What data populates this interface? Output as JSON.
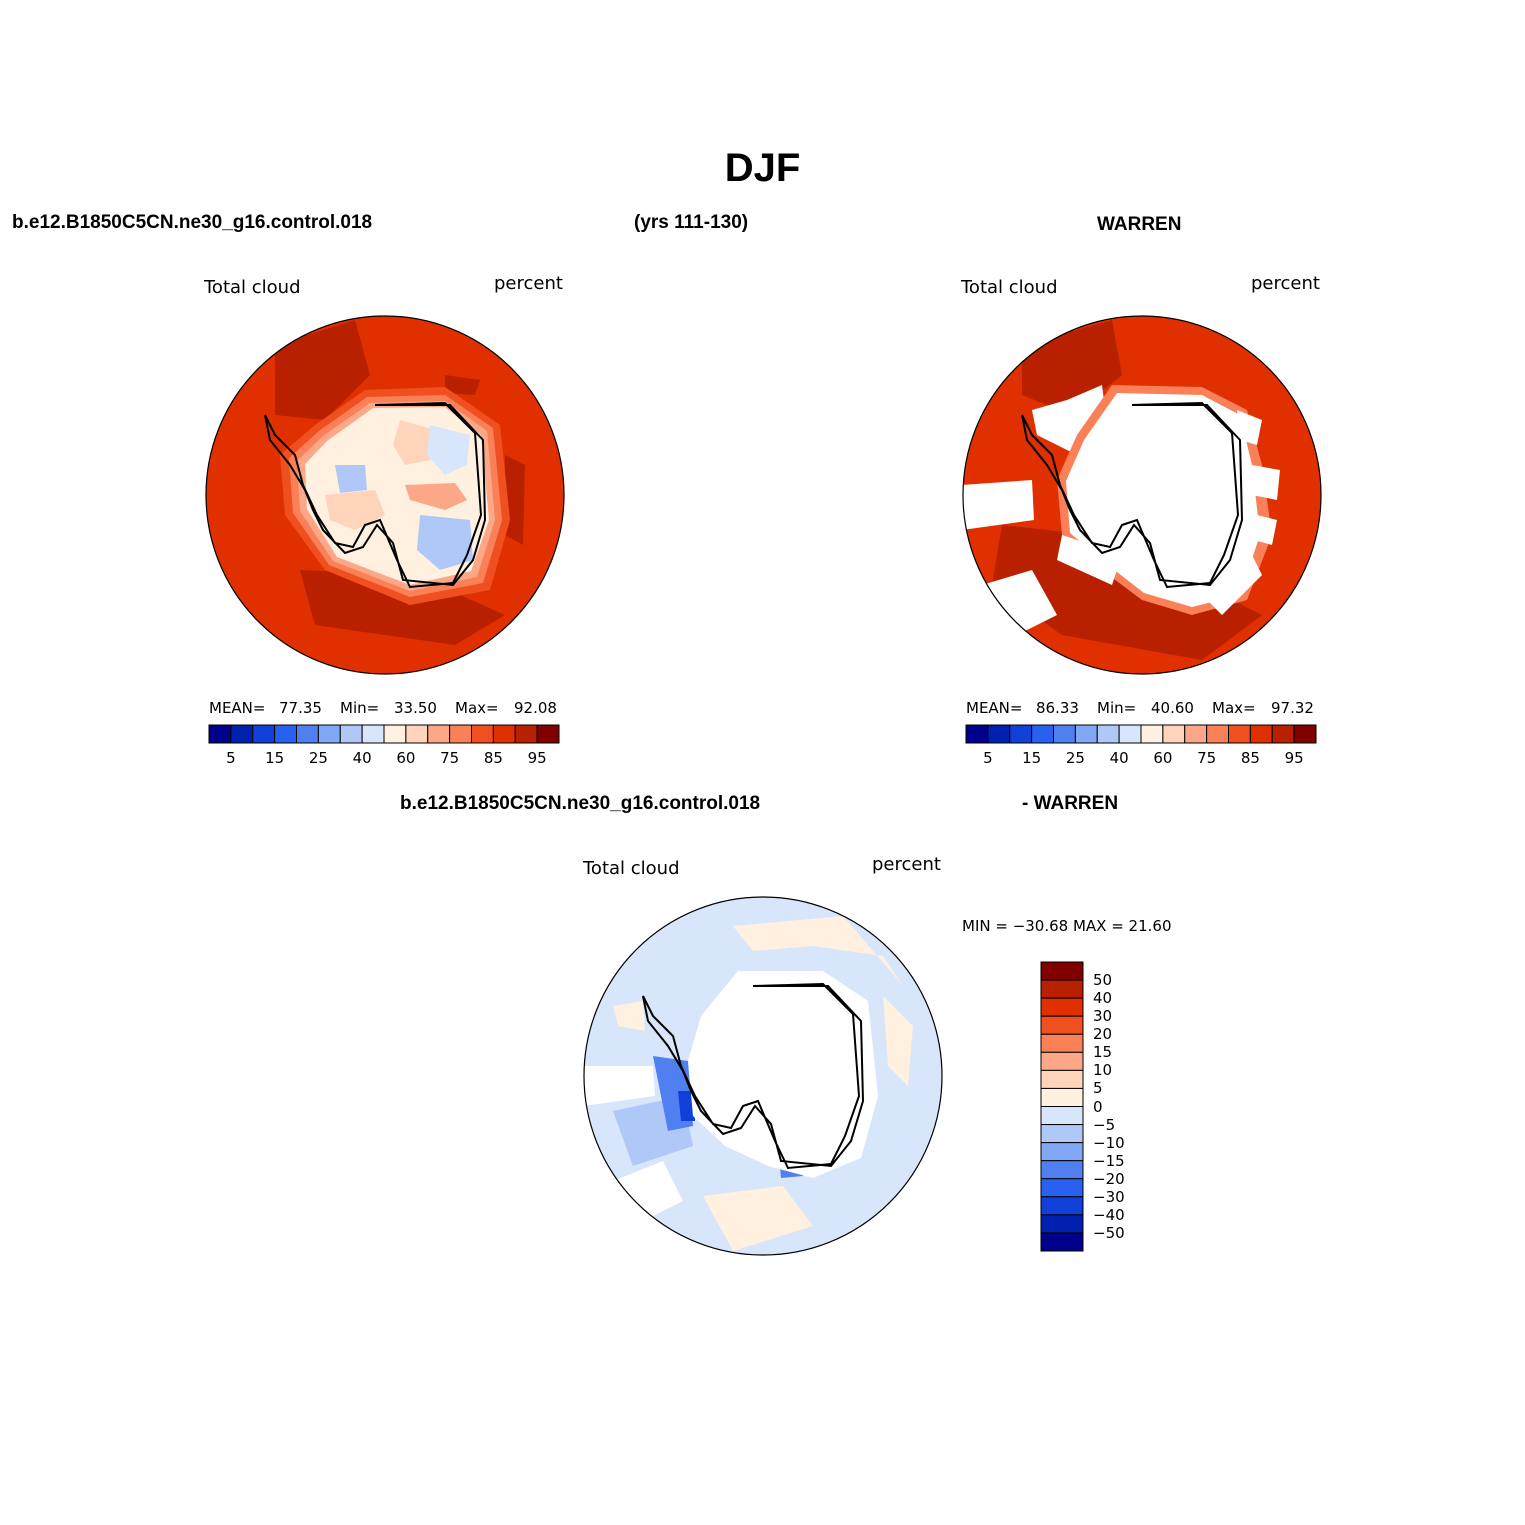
{
  "figure": {
    "title": "DJF",
    "case_name": "b.e12.B1850C5CN.ne30_g16.control.018",
    "years": "(yrs 111-130)",
    "reference": "WARREN",
    "diff_reference": "- WARREN"
  },
  "panels": [
    {
      "id": "model",
      "variable": "Total cloud",
      "units": "percent",
      "mean_label": "MEAN=",
      "mean": "77.35",
      "min_label": "Min=",
      "min": "33.50",
      "max_label": "Max=",
      "max": "92.08"
    },
    {
      "id": "obs",
      "variable": "Total cloud",
      "units": "percent",
      "mean_label": "MEAN=",
      "mean": "86.33",
      "min_label": "Min=",
      "min": "40.60",
      "max_label": "Max=",
      "max": "97.32"
    },
    {
      "id": "diff",
      "variable": "Total cloud",
      "units": "percent",
      "minmax_text": "MIN = −30.68 MAX =   21.60"
    }
  ],
  "colorbar_abs": {
    "colors": [
      "#00008a",
      "#0020b0",
      "#1040d8",
      "#2860f0",
      "#5080f0",
      "#80a8f5",
      "#b0c8f8",
      "#d8e6fb",
      "#fff0e0",
      "#ffd4ba",
      "#fca888",
      "#fa8058",
      "#f05020",
      "#e03000",
      "#b82000",
      "#800000"
    ],
    "labels": [
      "5",
      "15",
      "25",
      "40",
      "60",
      "75",
      "85",
      "95"
    ]
  },
  "colorbar_diff": {
    "colors": [
      "#800000",
      "#b82000",
      "#e03000",
      "#f05020",
      "#fa8058",
      "#fca888",
      "#ffd4ba",
      "#fff0e0",
      "#d8e6fb",
      "#b0c8f8",
      "#80a8f5",
      "#5080f0",
      "#2860f0",
      "#1040d8",
      "#0020b0",
      "#00008a"
    ],
    "labels": [
      "50",
      "40",
      "30",
      "20",
      "15",
      "10",
      "5",
      "0",
      "−5",
      "−10",
      "−15",
      "−20",
      "−30",
      "−40",
      "−50"
    ]
  },
  "map_colors": {
    "ocean_dark": "#b82000",
    "ocean": "#e03000",
    "ring1": "#f05020",
    "ring2": "#fa8058",
    "ring3": "#fca888",
    "land_pale": "#fff0e0",
    "land_peach": "#ffd4ba",
    "land_blue": "#b0c8f8",
    "land_lightblue": "#d8e6fb",
    "diff_base": "#d8e6fb",
    "diff_pos": "#fff0e0",
    "diff_neg1": "#b0c8f8",
    "diff_neg2": "#5080f0",
    "diff_neg3": "#1040d8",
    "missing": "#ffffff",
    "coast": "#000000"
  }
}
